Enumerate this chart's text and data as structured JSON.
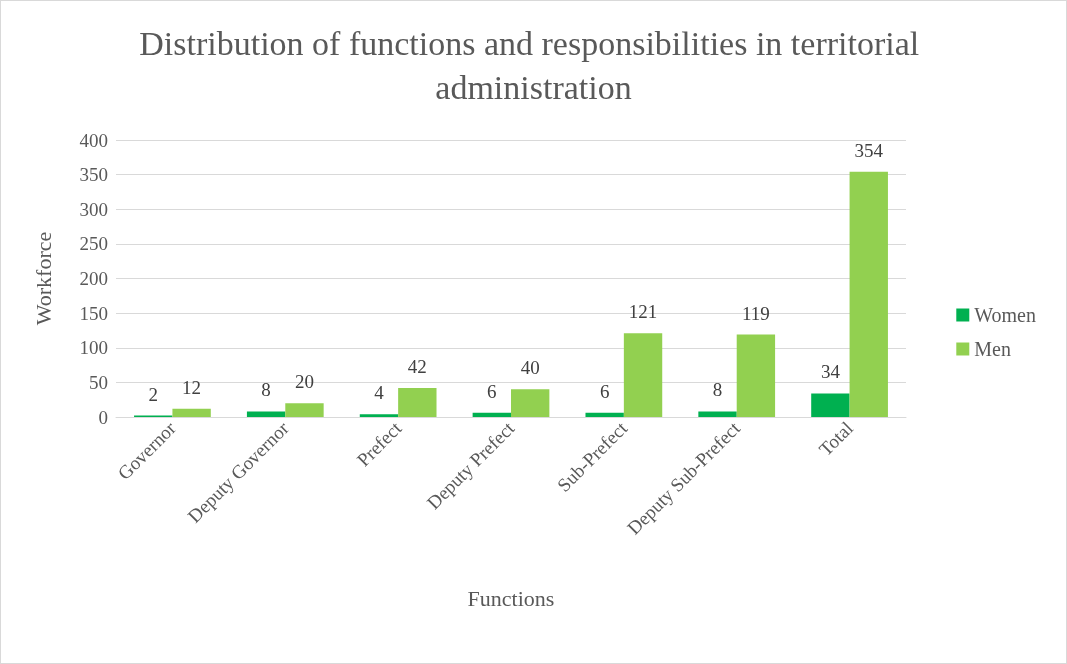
{
  "chart_data": {
    "type": "bar",
    "title": "Distribution of functions and responsibilities in territorial administration",
    "xlabel": "Functions",
    "ylabel": "Workforce",
    "categories": [
      "Governor",
      "Deputy Governor",
      "Prefect",
      "Deputy Prefect",
      "Sub-Prefect",
      "Deputy Sub-Prefect",
      "Total"
    ],
    "series": [
      {
        "name": "Women",
        "color": "#00b050",
        "values": [
          2,
          8,
          4,
          6,
          6,
          8,
          34
        ]
      },
      {
        "name": "Men",
        "color": "#92d050",
        "values": [
          12,
          20,
          42,
          40,
          121,
          119,
          354
        ]
      }
    ],
    "ylim": [
      0,
      400
    ],
    "yticks": [
      0,
      50,
      100,
      150,
      200,
      250,
      300,
      350,
      400
    ],
    "grid": "y",
    "legend": "right",
    "data_labels": true
  }
}
